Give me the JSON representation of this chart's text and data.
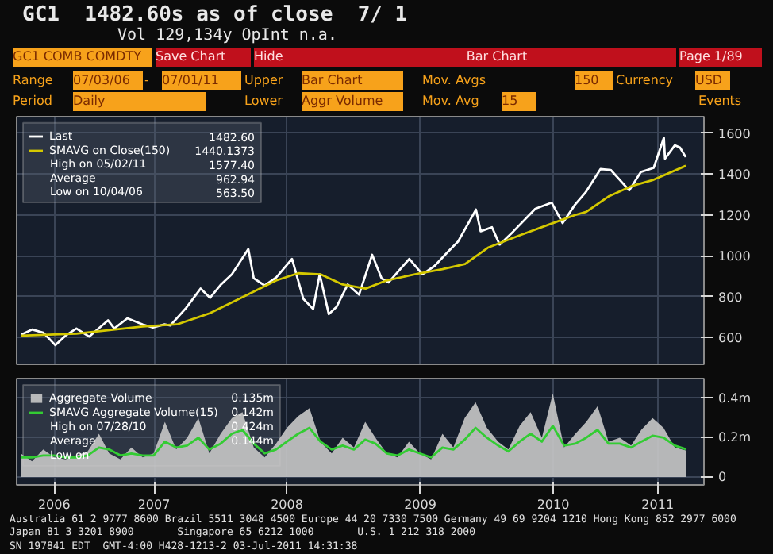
{
  "chart_data": [
    {
      "type": "other",
      "title": "GC1  1482.60s as of close  7/ 1",
      "subtitle": "Vol 129,134y OpInt n.a.",
      "annotations": [
        "GC1 COMB COMDTY",
        "Save Chart",
        "Hide",
        "Bar Chart",
        "Page 1/89",
        "Range",
        "07/03/06",
        "-",
        "07/01/11",
        "Upper",
        "Bar Chart",
        "Mov. Avgs",
        "150",
        "Currency",
        "USD",
        "Period",
        "Daily",
        "Lower",
        "Aggr Volume",
        "Mov. Avg",
        "15",
        "Events"
      ]
    },
    {
      "type": "line",
      "legend": "top left",
      "grid": true,
      "tick_labels": "y",
      "xlim": [
        "2006-06-20",
        "2011-08-20"
      ],
      "ylim": [
        470,
        1680
      ],
      "yticks": [
        600,
        800,
        1000,
        1200,
        1400,
        1600
      ],
      "xticks": [
        {
          "value": "2006-10-01",
          "label": null
        },
        {
          "value": "2007-07-02",
          "label": null
        },
        {
          "value": "2008-07-01",
          "label": null
        },
        {
          "value": "2009-07-02",
          "label": null
        },
        {
          "value": "2010-07-02",
          "label": null
        },
        {
          "value": "2011-04-15",
          "label": null
        }
      ],
      "annotations": [
        "1482.60",
        "High on 05/02/11",
        "1577.40",
        "Average",
        "962.94",
        "Low on 10/04/06",
        "563.50",
        "1440.1373"
      ],
      "series": [
        {
          "name": "Last",
          "color": "#ffffff",
          "x": [
            "2006-07-03",
            "2006-08-01",
            "2006-09-01",
            "2006-10-04",
            "2006-11-01",
            "2006-12-01",
            "2007-01-05",
            "2007-02-26",
            "2007-03-15",
            "2007-04-20",
            "2007-06-01",
            "2007-06-29",
            "2007-07-31",
            "2007-08-16",
            "2007-09-28",
            "2007-11-07",
            "2007-12-03",
            "2008-01-02",
            "2008-02-01",
            "2008-03-17",
            "2008-04-01",
            "2008-05-01",
            "2008-06-02",
            "2008-07-15",
            "2008-08-15",
            "2008-09-11",
            "2008-09-29",
            "2008-10-24",
            "2008-11-14",
            "2008-12-15",
            "2009-01-15",
            "2009-02-20",
            "2009-03-18",
            "2009-04-06",
            "2009-06-02",
            "2009-07-08",
            "2009-08-10",
            "2009-09-16",
            "2009-10-14",
            "2009-12-02",
            "2009-12-15",
            "2010-01-15",
            "2010-02-05",
            "2010-03-15",
            "2010-05-14",
            "2010-06-28",
            "2010-07-28",
            "2010-08-31",
            "2010-09-29",
            "2010-11-09",
            "2010-12-07",
            "2011-01-27",
            "2011-02-28",
            "2011-04-04",
            "2011-05-02",
            "2011-05-05",
            "2011-06-01",
            "2011-06-15",
            "2011-07-01"
          ],
          "values": [
            615,
            640,
            625,
            563.5,
            610,
            645,
            605,
            685,
            645,
            695,
            665,
            650,
            665,
            660,
            745,
            840,
            795,
            860,
            910,
            1033,
            890,
            855,
            895,
            985,
            790,
            740,
            910,
            715,
            750,
            860,
            810,
            1005,
            890,
            870,
            985,
            910,
            950,
            1020,
            1070,
            1226,
            1120,
            1140,
            1055,
            1120,
            1230,
            1260,
            1160,
            1250,
            1310,
            1424,
            1420,
            1320,
            1410,
            1430,
            1577.4,
            1475,
            1540,
            1530,
            1482.6
          ]
        },
        {
          "name": "SMAVG on Close(150)",
          "color": "#d4c800",
          "x": [
            "2006-07-03",
            "2006-12-01",
            "2007-06-01",
            "2007-09-03",
            "2007-12-03",
            "2008-03-03",
            "2008-06-02",
            "2008-08-01",
            "2008-10-01",
            "2008-12-01",
            "2009-02-02",
            "2009-04-01",
            "2009-07-01",
            "2009-09-01",
            "2009-11-02",
            "2010-01-04",
            "2010-04-01",
            "2010-07-01",
            "2010-09-01",
            "2010-10-01",
            "2010-12-01",
            "2011-02-01",
            "2011-04-01",
            "2011-07-01"
          ],
          "values": [
            610,
            620,
            655,
            665,
            720,
            800,
            880,
            915,
            910,
            860,
            840,
            880,
            915,
            935,
            960,
            1040,
            1100,
            1160,
            1200,
            1215,
            1290,
            1340,
            1370,
            1440.1373
          ]
        }
      ]
    },
    {
      "type": "area",
      "legend": "top left",
      "grid": true,
      "xlim": [
        "2006-06-20",
        "2011-08-20"
      ],
      "ylim": [
        -0.04,
        0.5
      ],
      "yticks": [
        0,
        {
          "value": 0.2,
          "label": "0.2m"
        },
        {
          "value": 0.4,
          "label": "0.4m"
        }
      ],
      "xticks": [
        {
          "value": "2006-10-01",
          "label": "2006"
        },
        {
          "value": "2007-07-02",
          "label": "2007"
        },
        {
          "value": "2008-07-01",
          "label": "2008"
        },
        {
          "value": "2009-07-02",
          "label": "2009"
        },
        {
          "value": "2010-07-02",
          "label": "2010"
        },
        {
          "value": "2011-04-15",
          "label": "2011"
        }
      ],
      "annotations": [
        "0.135m",
        "High on 07/28/10",
        "0.424m",
        "Average",
        "0.144m",
        "Low on",
        "0.142m"
      ],
      "x": [
        "2006-07",
        "2006-08",
        "2006-09",
        "2006-10",
        "2006-11",
        "2006-12",
        "2007-01",
        "2007-02",
        "2007-03",
        "2007-04",
        "2007-05",
        "2007-06",
        "2007-07",
        "2007-08",
        "2007-09",
        "2007-10",
        "2007-11",
        "2007-12",
        "2008-01",
        "2008-02",
        "2008-03",
        "2008-04",
        "2008-05",
        "2008-06",
        "2008-07",
        "2008-08",
        "2008-09",
        "2008-10",
        "2008-11",
        "2008-12",
        "2009-01",
        "2009-02",
        "2009-03",
        "2009-04",
        "2009-05",
        "2009-06",
        "2009-07",
        "2009-08",
        "2009-09",
        "2009-10",
        "2009-11",
        "2009-12",
        "2010-01",
        "2010-02",
        "2010-03",
        "2010-04",
        "2010-05",
        "2010-06",
        "2010-07",
        "2010-08",
        "2010-09",
        "2010-10",
        "2010-11",
        "2010-12",
        "2011-01",
        "2011-02",
        "2011-03",
        "2011-04",
        "2011-05",
        "2011-06",
        "2011-07"
      ],
      "series": [
        {
          "name": "Aggregate Volume",
          "color": "#c8c8c8",
          "values": [
            0.12,
            0.08,
            0.14,
            0.1,
            0.09,
            0.11,
            0.13,
            0.22,
            0.12,
            0.09,
            0.15,
            0.1,
            0.12,
            0.28,
            0.14,
            0.2,
            0.3,
            0.12,
            0.22,
            0.3,
            0.33,
            0.15,
            0.1,
            0.17,
            0.25,
            0.31,
            0.35,
            0.18,
            0.12,
            0.2,
            0.15,
            0.28,
            0.2,
            0.12,
            0.1,
            0.18,
            0.12,
            0.09,
            0.22,
            0.15,
            0.3,
            0.38,
            0.25,
            0.18,
            0.14,
            0.26,
            0.33,
            0.2,
            0.424,
            0.15,
            0.22,
            0.28,
            0.36,
            0.18,
            0.2,
            0.16,
            0.24,
            0.3,
            0.25,
            0.15,
            0.135
          ]
        },
        {
          "name": "SMAVG Aggregate Volume(15)",
          "color": "#33cc33",
          "type": "line",
          "values": [
            0.1,
            0.1,
            0.11,
            0.11,
            0.1,
            0.1,
            0.11,
            0.15,
            0.14,
            0.11,
            0.12,
            0.11,
            0.11,
            0.18,
            0.15,
            0.16,
            0.2,
            0.14,
            0.17,
            0.22,
            0.24,
            0.17,
            0.12,
            0.14,
            0.18,
            0.22,
            0.25,
            0.18,
            0.14,
            0.16,
            0.14,
            0.19,
            0.17,
            0.12,
            0.11,
            0.14,
            0.12,
            0.1,
            0.15,
            0.14,
            0.19,
            0.25,
            0.2,
            0.16,
            0.13,
            0.18,
            0.22,
            0.18,
            0.26,
            0.16,
            0.17,
            0.2,
            0.24,
            0.17,
            0.17,
            0.15,
            0.18,
            0.21,
            0.2,
            0.16,
            0.142
          ]
        }
      ]
    },
    {
      "type": "other",
      "annotations": [
        "Australia 61 2 9777 8600 Brazil 5511 3048 4500 Europe 44 20 7330 7500 Germany 49 69 9204 1210 Hong Kong 852 2977 6000",
        "Japan 81 3 3201 8900       Singapore 65 6212 1000       U.S. 1 212 318 2000",
        "SN 197841 EDT  GMT-4:00 H428-1213-2 03-Jul-2011 14:31:38"
      ]
    }
  ]
}
